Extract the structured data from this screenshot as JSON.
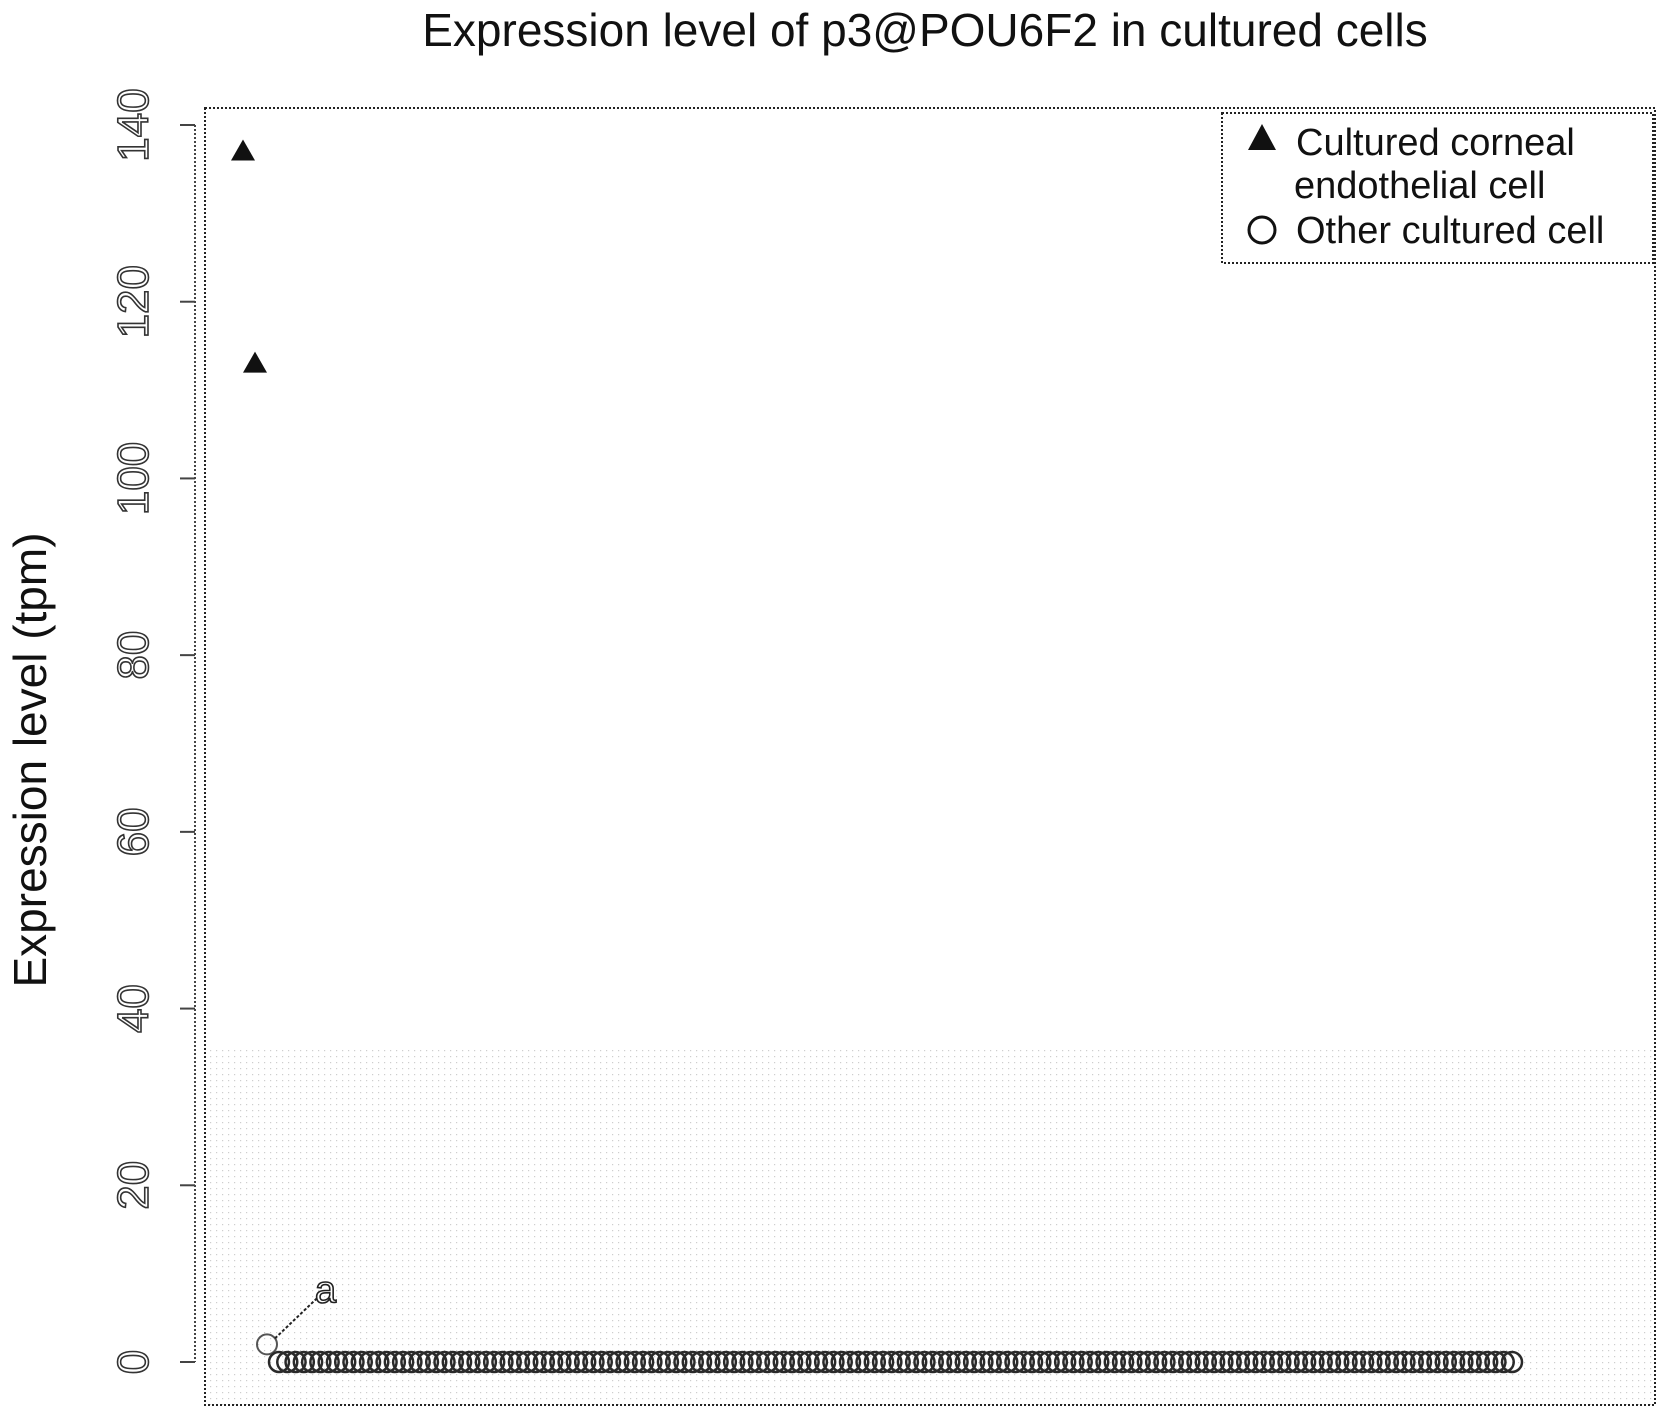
{
  "chart_data": {
    "type": "scatter",
    "title": "Expression level of p3@POU6F2 in cultured cells",
    "ylabel": "Expression level (tpm)",
    "xlabel": "",
    "ylim": [
      0,
      140
    ],
    "yticks": [
      0,
      20,
      40,
      60,
      80,
      100,
      120,
      140
    ],
    "grid": false,
    "legend_position": "top-right",
    "legend": [
      {
        "marker": "filled-triangle",
        "label_lines": [
          "Cultured corneal",
          "endothelial cell"
        ]
      },
      {
        "marker": "open-circle",
        "label_lines": [
          "Other cultured cell"
        ]
      }
    ],
    "series": [
      {
        "marker": "filled-triangle",
        "points": [
          {
            "x": 1,
            "y": 137
          },
          {
            "x": 2,
            "y": 113
          }
        ]
      },
      {
        "marker": "open-circle",
        "near_zero_count": 150,
        "near_zero_value": 0,
        "first_point": {
          "x": 3,
          "y": 2
        }
      }
    ],
    "annotations": [
      {
        "text": "a",
        "points_to": {
          "x": 3,
          "y": 2
        }
      }
    ]
  }
}
